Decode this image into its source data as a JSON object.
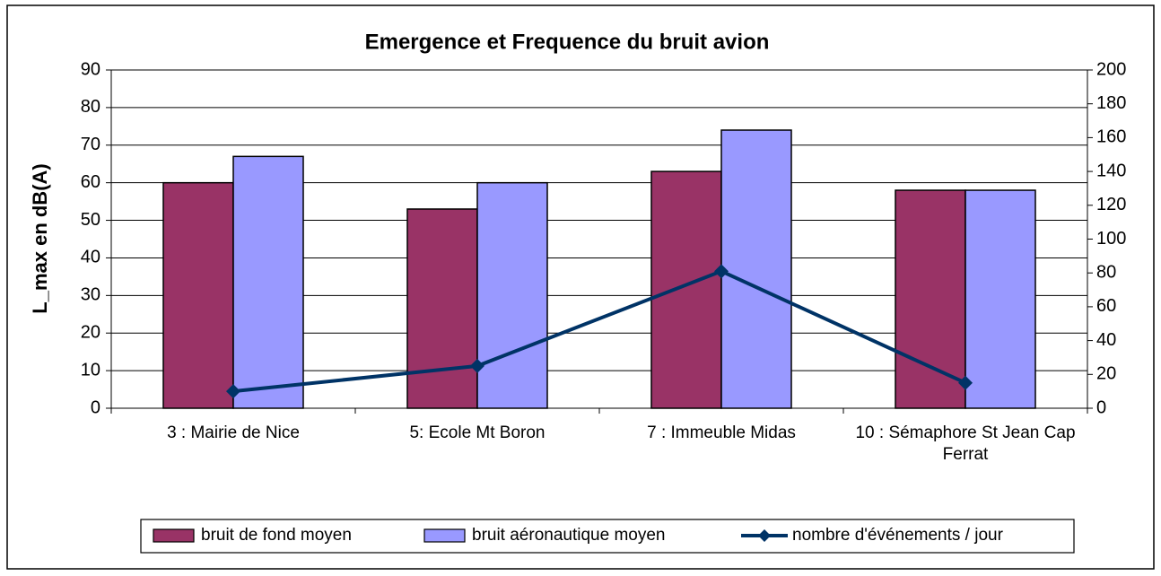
{
  "chart_data": {
    "type": "bar_line",
    "title": "Emergence et Frequence du bruit avion",
    "ylabel": "L_max en dB(A)",
    "categories": [
      "3 : Mairie de Nice",
      "5: Ecole Mt Boron",
      "7 : Immeuble Midas",
      "10 : Sémaphore St Jean Cap Ferrat"
    ],
    "series": [
      {
        "name": "bruit de fond moyen",
        "color": "#993366",
        "type": "bar",
        "values": [
          60,
          53,
          63,
          58
        ]
      },
      {
        "name": "bruit aéronautique moyen",
        "color": "#9999ff",
        "type": "bar",
        "values": [
          67,
          60,
          74,
          58
        ]
      },
      {
        "name": "nombre d'événements / jour",
        "color": "#003366",
        "type": "line",
        "axis": "y2",
        "values": [
          10,
          25,
          81,
          15
        ]
      }
    ],
    "ylim": [
      0,
      90
    ],
    "yticks": [
      0,
      10,
      20,
      30,
      40,
      50,
      60,
      70,
      80,
      90
    ],
    "y2lim": [
      0,
      200
    ],
    "y2ticks": [
      0,
      20,
      40,
      60,
      80,
      100,
      120,
      140,
      160,
      180,
      200
    ],
    "grid": true,
    "legend": "bottom"
  }
}
